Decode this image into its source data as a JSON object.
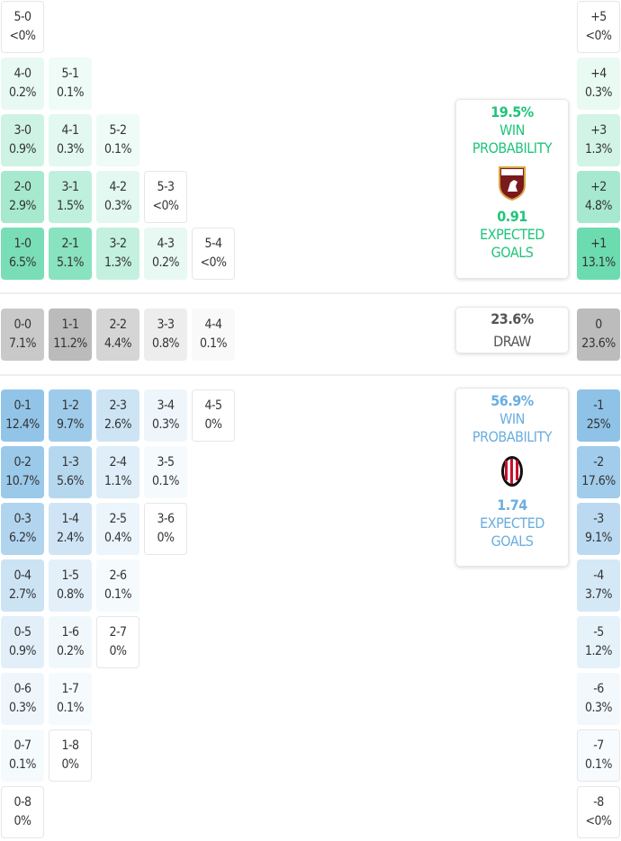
{
  "colors": {
    "home": "#2ecc8f",
    "away": "#5aa6dc",
    "draw": "#9a9a9a",
    "home_text": "#1fc47a",
    "away_text": "#6aaedf",
    "draw_text": "#555555"
  },
  "home_rows": [
    [
      {
        "s": "5-0",
        "p": "<0%",
        "v": 0
      }
    ],
    [
      {
        "s": "4-0",
        "p": "0.2%",
        "v": 0.2
      },
      {
        "s": "5-1",
        "p": "0.1%",
        "v": 0.1
      }
    ],
    [
      {
        "s": "3-0",
        "p": "0.9%",
        "v": 0.9
      },
      {
        "s": "4-1",
        "p": "0.3%",
        "v": 0.3
      },
      {
        "s": "5-2",
        "p": "0.1%",
        "v": 0.1
      }
    ],
    [
      {
        "s": "2-0",
        "p": "2.9%",
        "v": 2.9
      },
      {
        "s": "3-1",
        "p": "1.5%",
        "v": 1.5
      },
      {
        "s": "4-2",
        "p": "0.3%",
        "v": 0.3
      },
      {
        "s": "5-3",
        "p": "<0%",
        "v": 0
      }
    ],
    [
      {
        "s": "1-0",
        "p": "6.5%",
        "v": 6.5
      },
      {
        "s": "2-1",
        "p": "5.1%",
        "v": 5.1
      },
      {
        "s": "3-2",
        "p": "1.3%",
        "v": 1.3
      },
      {
        "s": "4-3",
        "p": "0.2%",
        "v": 0.2
      },
      {
        "s": "5-4",
        "p": "<0%",
        "v": 0
      }
    ]
  ],
  "draw_row": [
    {
      "s": "0-0",
      "p": "7.1%",
      "v": 7.1
    },
    {
      "s": "1-1",
      "p": "11.2%",
      "v": 11.2
    },
    {
      "s": "2-2",
      "p": "4.4%",
      "v": 4.4
    },
    {
      "s": "3-3",
      "p": "0.8%",
      "v": 0.8
    },
    {
      "s": "4-4",
      "p": "0.1%",
      "v": 0.1
    }
  ],
  "away_rows": [
    [
      {
        "s": "0-1",
        "p": "12.4%",
        "v": 12.4
      },
      {
        "s": "1-2",
        "p": "9.7%",
        "v": 9.7
      },
      {
        "s": "2-3",
        "p": "2.6%",
        "v": 2.6
      },
      {
        "s": "3-4",
        "p": "0.3%",
        "v": 0.3
      },
      {
        "s": "4-5",
        "p": "0%",
        "v": 0
      }
    ],
    [
      {
        "s": "0-2",
        "p": "10.7%",
        "v": 10.7
      },
      {
        "s": "1-3",
        "p": "5.6%",
        "v": 5.6
      },
      {
        "s": "2-4",
        "p": "1.1%",
        "v": 1.1
      },
      {
        "s": "3-5",
        "p": "0.1%",
        "v": 0.1
      }
    ],
    [
      {
        "s": "0-3",
        "p": "6.2%",
        "v": 6.2
      },
      {
        "s": "1-4",
        "p": "2.4%",
        "v": 2.4
      },
      {
        "s": "2-5",
        "p": "0.4%",
        "v": 0.4
      },
      {
        "s": "3-6",
        "p": "0%",
        "v": 0
      }
    ],
    [
      {
        "s": "0-4",
        "p": "2.7%",
        "v": 2.7
      },
      {
        "s": "1-5",
        "p": "0.8%",
        "v": 0.8
      },
      {
        "s": "2-6",
        "p": "0.1%",
        "v": 0.1
      }
    ],
    [
      {
        "s": "0-5",
        "p": "0.9%",
        "v": 0.9
      },
      {
        "s": "1-6",
        "p": "0.2%",
        "v": 0.2
      },
      {
        "s": "2-7",
        "p": "0%",
        "v": 0
      }
    ],
    [
      {
        "s": "0-6",
        "p": "0.3%",
        "v": 0.3
      },
      {
        "s": "1-7",
        "p": "0.1%",
        "v": 0.1
      }
    ],
    [
      {
        "s": "0-7",
        "p": "0.1%",
        "v": 0.1
      },
      {
        "s": "1-8",
        "p": "0%",
        "v": 0
      }
    ],
    [
      {
        "s": "0-8",
        "p": "0%",
        "v": 0
      }
    ]
  ],
  "margin_home": [
    {
      "s": "+5",
      "p": "<0%",
      "v": 0
    },
    {
      "s": "+4",
      "p": "0.3%",
      "v": 0.3
    },
    {
      "s": "+3",
      "p": "1.3%",
      "v": 1.3
    },
    {
      "s": "+2",
      "p": "4.8%",
      "v": 4.8
    },
    {
      "s": "+1",
      "p": "13.1%",
      "v": 13.1
    }
  ],
  "margin_draw": {
    "s": "0",
    "p": "23.6%",
    "v": 23.6
  },
  "margin_away": [
    {
      "s": "-1",
      "p": "25%",
      "v": 25
    },
    {
      "s": "-2",
      "p": "17.6%",
      "v": 17.6
    },
    {
      "s": "-3",
      "p": "9.1%",
      "v": 9.1
    },
    {
      "s": "-4",
      "p": "3.7%",
      "v": 3.7
    },
    {
      "s": "-5",
      "p": "1.2%",
      "v": 1.2
    },
    {
      "s": "-6",
      "p": "0.3%",
      "v": 0.3
    },
    {
      "s": "-7",
      "p": "0.1%",
      "v": 0.1
    },
    {
      "s": "-8",
      "p": "<0%",
      "v": 0
    }
  ],
  "home_panel": {
    "win_pct": "19.5%",
    "win_label_1": "WIN",
    "win_label_2": "PROBABILITY",
    "xg": "0.91",
    "xg_label_1": "EXPECTED",
    "xg_label_2": "GOALS",
    "crest_text": "TORINO FC"
  },
  "draw_panel": {
    "pct": "23.6%",
    "label": "DRAW"
  },
  "away_panel": {
    "win_pct": "56.9%",
    "win_label_1": "WIN",
    "win_label_2": "PROBABILITY",
    "xg": "1.74",
    "xg_label_1": "EXPECTED",
    "xg_label_2": "GOALS",
    "crest_text": "AC MILAN"
  }
}
